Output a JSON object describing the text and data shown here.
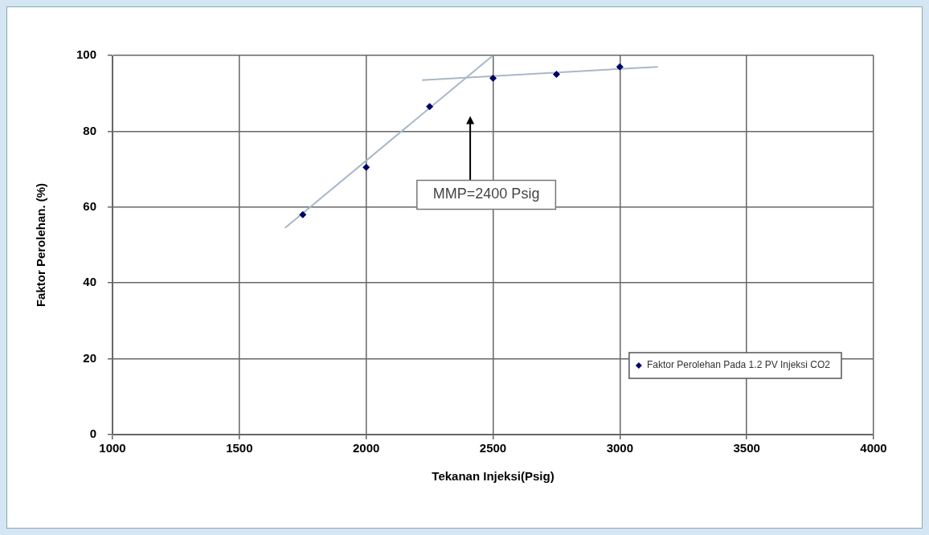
{
  "chart_data": {
    "type": "scatter",
    "xlabel": "Tekanan Injeksi(Psig)",
    "ylabel": "Faktor Perolehan. (%)",
    "xlim": [
      1000,
      4000
    ],
    "xticks": [
      1000,
      1500,
      2000,
      2500,
      3000,
      3500,
      4000
    ],
    "ylim": [
      0,
      100
    ],
    "yticks": [
      0,
      20,
      40,
      60,
      80,
      100
    ],
    "grid": true,
    "legend": "bottom right",
    "series": [
      {
        "name": "Faktor Perolehan Pada 1.2 PV Injeksi CO2",
        "color": "#000066",
        "marker": "diamond",
        "x": [
          1750,
          2000,
          2250,
          2500,
          2750,
          3000
        ],
        "values": [
          58,
          70.5,
          86.5,
          94,
          95,
          97
        ]
      },
      {
        "type": "line",
        "color": "#a8b8c8",
        "x": [
          1680,
          2500
        ],
        "values": [
          54.5,
          100
        ]
      },
      {
        "type": "line",
        "color": "#a8b8c8",
        "x": [
          2220,
          3150
        ],
        "values": [
          93.5,
          97
        ]
      }
    ],
    "annotations": [
      "MMP=2400 Psig"
    ]
  }
}
